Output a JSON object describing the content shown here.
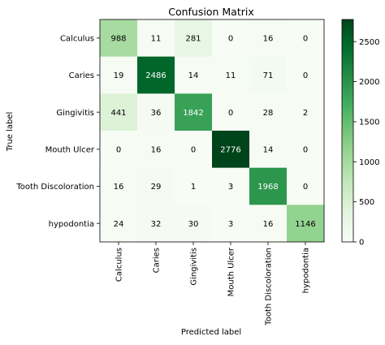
{
  "chart_data": {
    "type": "heatmap",
    "title": "Confusion Matrix",
    "xlabel": "Predicted label",
    "ylabel": "True label",
    "row_labels": [
      "Calculus",
      "Caries",
      "Gingivitis",
      "Mouth Ulcer",
      "Tooth Discoloration",
      "hypodontia"
    ],
    "col_labels": [
      "Calculus",
      "Caries",
      "Gingivitis",
      "Mouth Ulcer",
      "Tooth Discoloration",
      "hypodontia"
    ],
    "values": [
      [
        988,
        11,
        281,
        0,
        16,
        0
      ],
      [
        19,
        2486,
        14,
        11,
        71,
        0
      ],
      [
        441,
        36,
        1842,
        0,
        28,
        2
      ],
      [
        0,
        16,
        0,
        2776,
        14,
        0
      ],
      [
        16,
        29,
        1,
        3,
        1968,
        0
      ],
      [
        24,
        32,
        30,
        3,
        16,
        1146
      ]
    ],
    "colorbar": {
      "colormap": "Greens",
      "range": [
        0,
        2776
      ],
      "ticks": [
        0,
        500,
        1000,
        1500,
        2000,
        2500
      ]
    },
    "grid": false
  }
}
